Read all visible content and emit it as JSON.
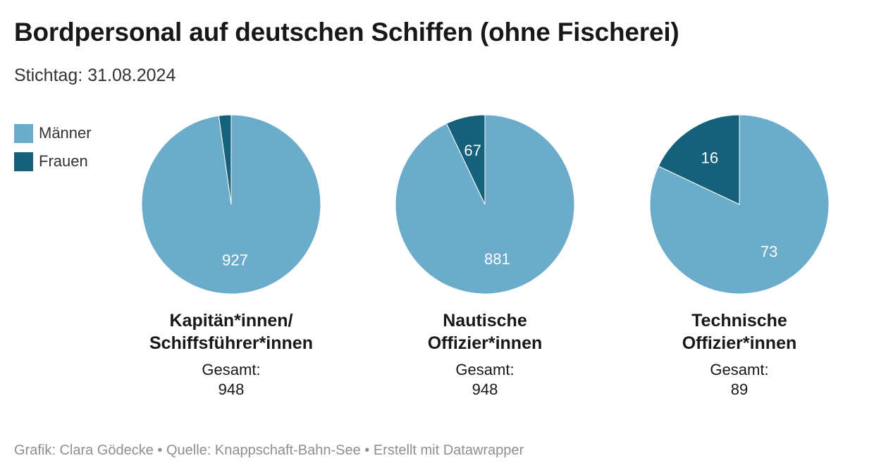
{
  "title": "Bordpersonal auf deutschen Schiffen (ohne Fischerei)",
  "subtitle": "Stichtag: 31.08.2024",
  "footer": "Grafik: Clara Gödecke • Quelle: Knappschaft-Bahn-See • Erstellt mit Datawrapper",
  "colors": {
    "maenner": "#6aacca",
    "frauen": "#15607a"
  },
  "total_label": "Gesamt:",
  "chart_data": {
    "type": "pie",
    "legend": [
      {
        "name": "Männer",
        "color": "#6aacca"
      },
      {
        "name": "Frauen",
        "color": "#15607a"
      }
    ],
    "charts": [
      {
        "label_line1": "Kapitän*innen/",
        "label_line2": "Schiffsführer*innen",
        "total": "948",
        "frauen": 21,
        "maenner": 927,
        "frauen_label": "",
        "maenner_label": "927"
      },
      {
        "label_line1": "Nautische",
        "label_line2": "Offizier*innen",
        "total": "948",
        "frauen": 67,
        "maenner": 881,
        "frauen_label": "67",
        "maenner_label": "881"
      },
      {
        "label_line1": "Technische",
        "label_line2": "Offizier*innen",
        "total": "89",
        "frauen": 16,
        "maenner": 73,
        "frauen_label": "16",
        "maenner_label": "73"
      }
    ]
  }
}
